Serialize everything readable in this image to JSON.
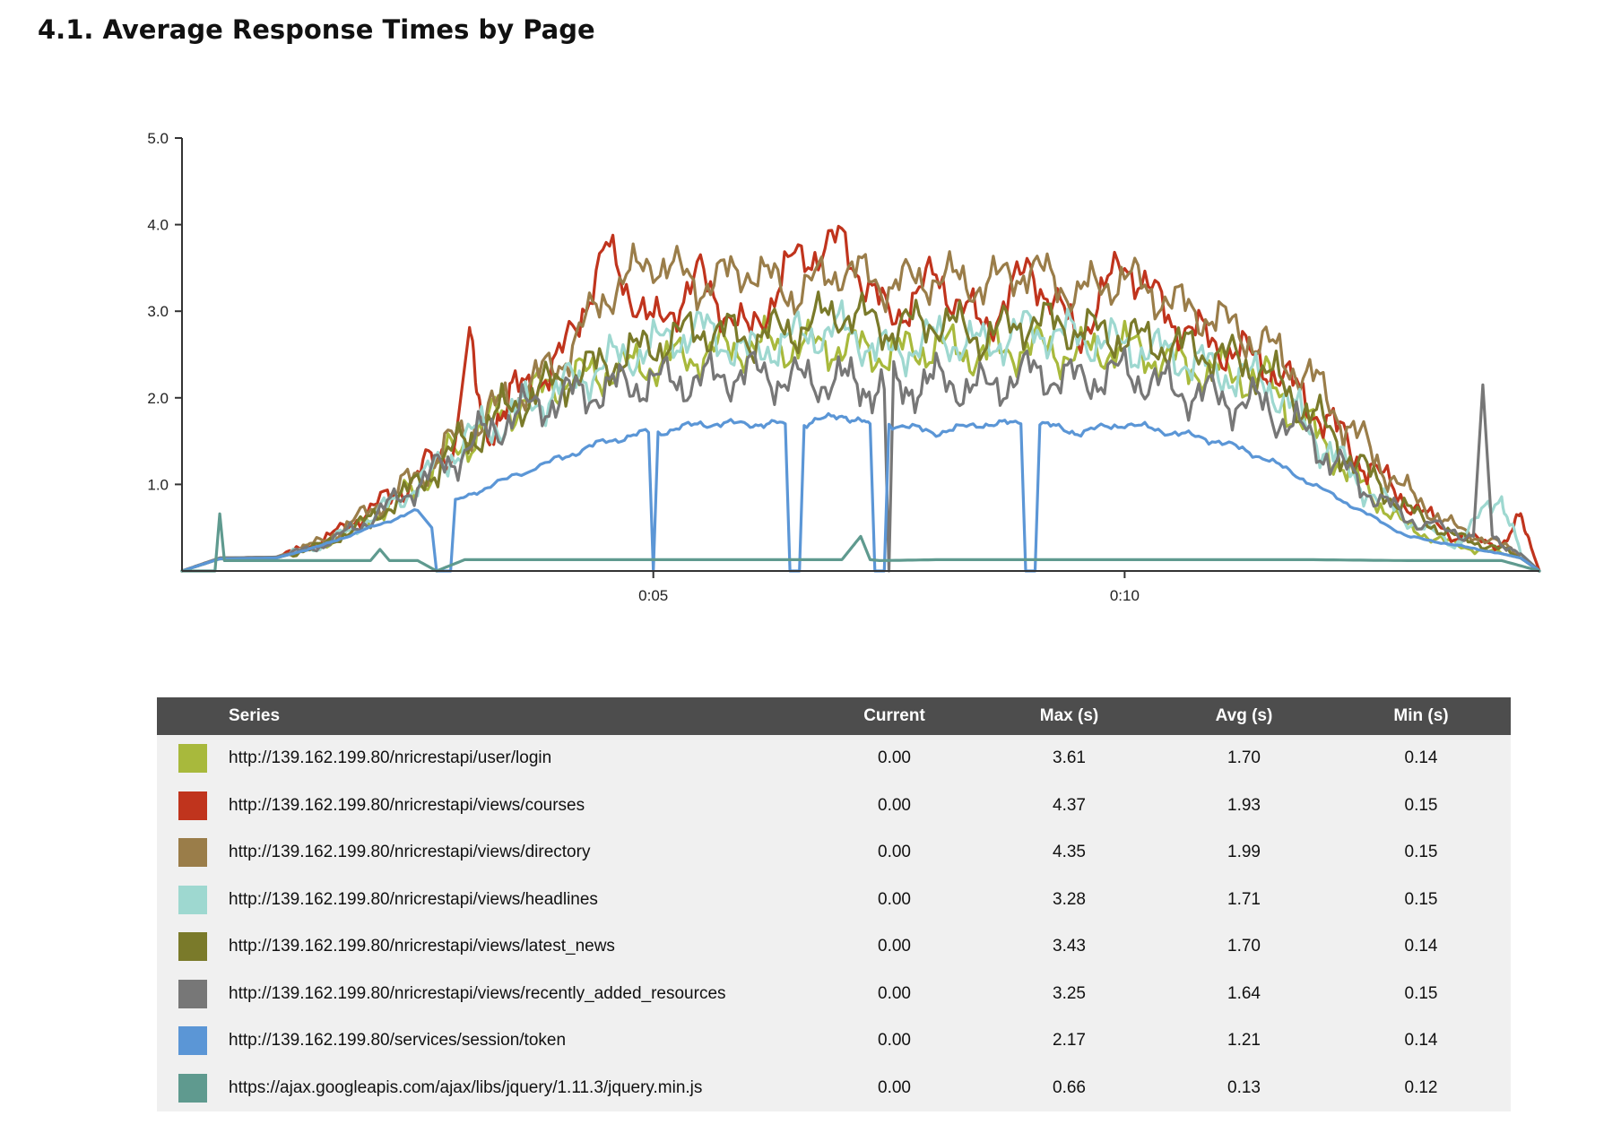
{
  "page": {
    "title": "4.1. Average Response Times by Page"
  },
  "table": {
    "headers": {
      "series": "Series",
      "current": "Current",
      "max": "Max (s)",
      "avg": "Avg (s)",
      "min": "Min (s)"
    },
    "rows": [
      {
        "color": "#a8b93c",
        "series": "http://139.162.199.80/nricrestapi/user/login",
        "current": "0.00",
        "max": "3.61",
        "avg": "1.70",
        "min": "0.14"
      },
      {
        "color": "#c0341d",
        "series": "http://139.162.199.80/nricrestapi/views/courses",
        "current": "0.00",
        "max": "4.37",
        "avg": "1.93",
        "min": "0.15"
      },
      {
        "color": "#9a7d49",
        "series": "http://139.162.199.80/nricrestapi/views/directory",
        "current": "0.00",
        "max": "4.35",
        "avg": "1.99",
        "min": "0.15"
      },
      {
        "color": "#9ed8d0",
        "series": "http://139.162.199.80/nricrestapi/views/headlines",
        "current": "0.00",
        "max": "3.28",
        "avg": "1.71",
        "min": "0.15"
      },
      {
        "color": "#7a7a2a",
        "series": "http://139.162.199.80/nricrestapi/views/latest_news",
        "current": "0.00",
        "max": "3.43",
        "avg": "1.70",
        "min": "0.14"
      },
      {
        "color": "#777777",
        "series": "http://139.162.199.80/nricrestapi/views/recently_added_resources",
        "current": "0.00",
        "max": "3.25",
        "avg": "1.64",
        "min": "0.15"
      },
      {
        "color": "#5b96d6",
        "series": "http://139.162.199.80/services/session/token",
        "current": "0.00",
        "max": "2.17",
        "avg": "1.21",
        "min": "0.14"
      },
      {
        "color": "#5f9a8f",
        "series": "https://ajax.googleapis.com/ajax/libs/jquery/1.11.3/jquery.min.js",
        "current": "0.00",
        "max": "0.66",
        "avg": "0.13",
        "min": "0.12"
      }
    ]
  },
  "chart_data": {
    "type": "line",
    "title": "4.1. Average Response Times by Page",
    "xlabel": "",
    "ylabel": "",
    "xlim": [
      0,
      14.4
    ],
    "ylim": [
      0,
      5.0
    ],
    "yticks": [
      "1.0",
      "2.0",
      "3.0",
      "4.0",
      "5.0"
    ],
    "xticks": [
      {
        "value": 5,
        "label": "0:05"
      },
      {
        "value": 10,
        "label": "0:10"
      }
    ],
    "grid": false,
    "legend": "table-below",
    "series": [
      {
        "name": "http://139.162.199.80/nricrestapi/user/login",
        "color": "#a8b93c",
        "x": [
          0,
          0.4,
          1,
          1.5,
          2,
          2.5,
          3,
          3.5,
          4,
          4.5,
          5,
          5.5,
          6,
          6.5,
          7,
          7.5,
          8,
          8.5,
          9,
          9.5,
          10,
          10.5,
          11,
          11.5,
          12,
          12.5,
          13,
          13.5,
          14,
          14.2,
          14.4
        ],
        "y": [
          0,
          0.14,
          0.15,
          0.3,
          0.6,
          1.0,
          1.5,
          1.9,
          2.2,
          2.3,
          2.4,
          2.5,
          2.6,
          2.6,
          2.6,
          2.5,
          2.6,
          2.5,
          2.6,
          2.5,
          2.6,
          2.4,
          2.3,
          2.2,
          1.6,
          1.0,
          0.5,
          0.3,
          0.2,
          0.15,
          0
        ]
      },
      {
        "name": "http://139.162.199.80/nricrestapi/views/courses",
        "color": "#c0341d",
        "x": [
          0,
          0.4,
          1,
          1.5,
          2,
          2.5,
          2.9,
          3.05,
          3.2,
          3.5,
          4,
          4.5,
          5,
          5.5,
          6,
          6.5,
          7,
          7.5,
          8,
          8.5,
          9,
          9.5,
          10,
          10.5,
          11,
          11.5,
          12,
          12.5,
          13,
          13.5,
          14,
          14.2,
          14.4
        ],
        "y": [
          0,
          0.15,
          0.16,
          0.35,
          0.7,
          1.1,
          1.5,
          2.6,
          1.6,
          2.0,
          2.4,
          3.7,
          2.8,
          3.4,
          2.7,
          3.6,
          3.8,
          2.9,
          3.4,
          2.8,
          3.5,
          2.7,
          3.6,
          2.9,
          2.6,
          2.4,
          1.9,
          1.3,
          0.8,
          0.4,
          0.3,
          0.6,
          0
        ]
      },
      {
        "name": "http://139.162.199.80/nricrestapi/views/directory",
        "color": "#9a7d49",
        "x": [
          0,
          0.4,
          1,
          1.5,
          2,
          2.5,
          3,
          3.5,
          4,
          4.5,
          5,
          5.5,
          6,
          6.5,
          7,
          7.5,
          8,
          8.5,
          9,
          9.5,
          10,
          10.5,
          11,
          11.5,
          12,
          12.5,
          13,
          13.5,
          14,
          14.2,
          14.4
        ],
        "y": [
          0,
          0.15,
          0.16,
          0.35,
          0.7,
          1.1,
          1.6,
          2.0,
          2.4,
          3.2,
          3.6,
          3.3,
          3.5,
          3.2,
          3.5,
          3.3,
          3.4,
          3.3,
          3.5,
          3.2,
          3.4,
          3.1,
          2.9,
          2.6,
          2.2,
          1.5,
          0.9,
          0.5,
          0.3,
          0.2,
          0
        ]
      },
      {
        "name": "http://139.162.199.80/nricrestapi/views/headlines",
        "color": "#9ed8d0",
        "x": [
          0,
          0.4,
          1,
          1.5,
          2,
          2.5,
          3,
          3.5,
          4,
          4.5,
          5,
          5.5,
          6,
          6.5,
          7,
          7.5,
          8,
          8.5,
          9,
          9.5,
          10,
          10.5,
          11,
          11.5,
          12,
          12.5,
          13,
          13.5,
          14,
          14.2,
          14.4
        ],
        "y": [
          0,
          0.15,
          0.16,
          0.3,
          0.6,
          1.0,
          1.5,
          1.8,
          2.1,
          2.4,
          2.6,
          2.8,
          2.5,
          2.7,
          2.8,
          2.5,
          2.7,
          2.6,
          2.8,
          2.7,
          2.6,
          2.5,
          2.3,
          2.2,
          1.6,
          1.0,
          0.6,
          0.3,
          0.9,
          0.2,
          0
        ]
      },
      {
        "name": "http://139.162.199.80/nricrestapi/views/latest_news",
        "color": "#7a7a2a",
        "x": [
          0,
          0.4,
          1,
          1.5,
          2,
          2.5,
          3,
          3.5,
          4,
          4.5,
          5,
          5.5,
          6,
          6.5,
          7,
          7.5,
          8,
          8.5,
          9,
          9.5,
          10,
          10.5,
          11,
          11.5,
          12,
          12.5,
          13,
          13.5,
          14,
          14.2,
          14.4
        ],
        "y": [
          0,
          0.14,
          0.15,
          0.3,
          0.6,
          1.0,
          1.5,
          1.9,
          2.2,
          2.4,
          2.6,
          2.8,
          2.7,
          2.8,
          3.0,
          2.8,
          2.9,
          2.7,
          2.9,
          2.8,
          2.7,
          2.6,
          2.5,
          2.3,
          1.8,
          1.2,
          0.7,
          0.4,
          0.25,
          0.15,
          0
        ]
      },
      {
        "name": "http://139.162.199.80/nricrestapi/views/recently_added_resources",
        "color": "#777777",
        "x": [
          0,
          0.4,
          1,
          1.5,
          2,
          2.5,
          3,
          3.5,
          4,
          4.5,
          5,
          5.5,
          6,
          6.5,
          7,
          7.45,
          7.5,
          7.55,
          8,
          8.5,
          9,
          9.5,
          10,
          10.5,
          11,
          11.5,
          12,
          12.5,
          13,
          13.7,
          13.8,
          13.9,
          14.2,
          14.4
        ],
        "y": [
          0,
          0.15,
          0.16,
          0.3,
          0.6,
          1.0,
          1.4,
          1.8,
          2.0,
          2.1,
          2.2,
          2.2,
          2.3,
          2.2,
          2.2,
          2.1,
          0.0,
          2.1,
          2.2,
          2.1,
          2.3,
          2.2,
          2.3,
          2.1,
          2.0,
          1.9,
          1.5,
          1.0,
          0.6,
          0.4,
          2.15,
          0.4,
          0.2,
          0
        ]
      },
      {
        "name": "http://139.162.199.80/services/session/token",
        "color": "#5b96d6",
        "x": [
          0,
          0.4,
          1,
          1.5,
          2,
          2.5,
          2.65,
          2.7,
          2.85,
          2.9,
          3.3,
          4,
          4.5,
          4.95,
          5.0,
          5.05,
          5.5,
          6,
          6.4,
          6.45,
          6.55,
          6.6,
          7,
          7.3,
          7.35,
          7.45,
          7.5,
          8,
          8.5,
          8.9,
          8.95,
          9.05,
          9.1,
          9.5,
          10,
          10.5,
          11,
          11.5,
          12,
          12.5,
          13,
          13.5,
          14,
          14.2,
          14.4
        ],
        "y": [
          0,
          0.14,
          0.15,
          0.3,
          0.5,
          0.7,
          0.5,
          0.0,
          0.0,
          0.8,
          1.0,
          1.3,
          1.5,
          1.6,
          0.0,
          1.6,
          1.7,
          1.7,
          1.7,
          0.0,
          0.0,
          1.7,
          1.8,
          1.7,
          0.0,
          0.0,
          1.7,
          1.6,
          1.7,
          1.7,
          0.0,
          0.0,
          1.7,
          1.6,
          1.7,
          1.6,
          1.5,
          1.3,
          1.0,
          0.7,
          0.4,
          0.3,
          0.2,
          0.15,
          0
        ]
      },
      {
        "name": "https://ajax.googleapis.com/ajax/libs/jquery/1.11.3/jquery.min.js",
        "color": "#5f9a8f",
        "x": [
          0,
          0.35,
          0.4,
          0.45,
          1,
          1.5,
          2,
          2.1,
          2.2,
          2.5,
          2.7,
          3,
          4,
          5,
          6,
          7,
          7.2,
          7.3,
          7.4,
          8,
          9,
          10,
          11,
          12,
          13,
          14,
          14.4
        ],
        "y": [
          0,
          0.0,
          0.66,
          0.12,
          0.12,
          0.12,
          0.12,
          0.25,
          0.12,
          0.12,
          0.0,
          0.13,
          0.13,
          0.13,
          0.13,
          0.13,
          0.4,
          0.13,
          0.12,
          0.13,
          0.13,
          0.13,
          0.13,
          0.13,
          0.12,
          0.12,
          0
        ]
      }
    ]
  }
}
